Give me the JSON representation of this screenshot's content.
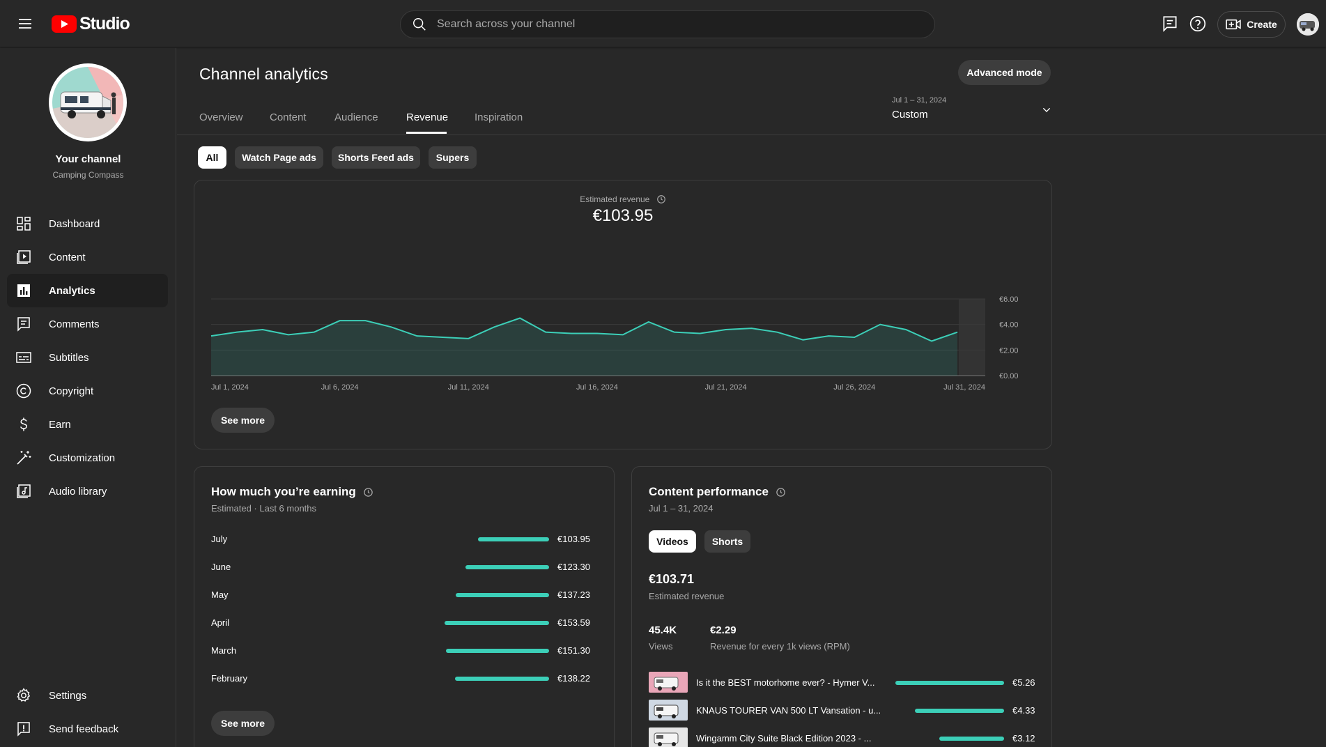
{
  "topbar": {
    "logo_text": "Studio",
    "search_placeholder": "Search across your channel",
    "create_label": "Create"
  },
  "sidebar": {
    "channel_title": "Your channel",
    "channel_name": "Camping Compass",
    "items": [
      {
        "label": "Dashboard",
        "icon": "dashboard-icon"
      },
      {
        "label": "Content",
        "icon": "content-icon"
      },
      {
        "label": "Analytics",
        "icon": "analytics-icon",
        "active": true
      },
      {
        "label": "Comments",
        "icon": "comments-icon"
      },
      {
        "label": "Subtitles",
        "icon": "subtitles-icon"
      },
      {
        "label": "Copyright",
        "icon": "copyright-icon"
      },
      {
        "label": "Earn",
        "icon": "earn-icon"
      },
      {
        "label": "Customization",
        "icon": "customization-icon"
      },
      {
        "label": "Audio library",
        "icon": "audio-library-icon"
      }
    ],
    "bottom_items": [
      {
        "label": "Settings",
        "icon": "settings-icon"
      },
      {
        "label": "Send feedback",
        "icon": "feedback-icon"
      }
    ]
  },
  "header": {
    "title": "Channel analytics",
    "advanced_mode_label": "Advanced mode",
    "tabs": [
      "Overview",
      "Content",
      "Audience",
      "Revenue",
      "Inspiration"
    ],
    "active_tab": "Revenue",
    "date_range": "Jul 1 – 31, 2024",
    "date_label": "Custom"
  },
  "filter_chips": [
    {
      "label": "All",
      "active": true
    },
    {
      "label": "Watch Page ads"
    },
    {
      "label": "Shorts Feed ads"
    },
    {
      "label": "Supers"
    }
  ],
  "revenue_card": {
    "label": "Estimated revenue",
    "value": "€103.95",
    "see_more": "See more"
  },
  "chart_data": {
    "type": "area",
    "x": [
      "Jul 1",
      "Jul 2",
      "Jul 3",
      "Jul 4",
      "Jul 5",
      "Jul 6",
      "Jul 7",
      "Jul 8",
      "Jul 9",
      "Jul 10",
      "Jul 11",
      "Jul 12",
      "Jul 13",
      "Jul 14",
      "Jul 15",
      "Jul 16",
      "Jul 17",
      "Jul 18",
      "Jul 19",
      "Jul 20",
      "Jul 21",
      "Jul 22",
      "Jul 23",
      "Jul 24",
      "Jul 25",
      "Jul 26",
      "Jul 27",
      "Jul 28",
      "Jul 29",
      "Jul 30"
    ],
    "series": [
      {
        "values": [
          3.1,
          3.4,
          3.6,
          3.2,
          3.4,
          4.3,
          4.3,
          3.8,
          3.1,
          3.0,
          2.9,
          3.8,
          4.5,
          3.4,
          3.3,
          3.3,
          3.2,
          4.2,
          3.4,
          3.3,
          3.6,
          3.7,
          3.4,
          2.8,
          3.1,
          3.0,
          4.0,
          3.6,
          2.7,
          3.4
        ]
      }
    ],
    "x_tick_labels": [
      "Jul 1, 2024",
      "Jul 6, 2024",
      "Jul 11, 2024",
      "Jul 16, 2024",
      "Jul 21, 2024",
      "Jul 26, 2024",
      "Jul 31, 2024"
    ],
    "y_tick_labels": [
      "€6.00",
      "€4.00",
      "€2.00",
      "€0.00"
    ],
    "ylim": [
      0,
      6
    ],
    "grid": true,
    "line_color": "#3ccfb8"
  },
  "earning_card": {
    "title": "How much you’re earning",
    "subtitle": "Estimated · Last 6 months",
    "rows": [
      {
        "month": "July",
        "value": 103.95,
        "label": "€103.95"
      },
      {
        "month": "June",
        "value": 123.3,
        "label": "€123.30"
      },
      {
        "month": "May",
        "value": 137.23,
        "label": "€137.23"
      },
      {
        "month": "April",
        "value": 153.59,
        "label": "€153.59"
      },
      {
        "month": "March",
        "value": 151.3,
        "label": "€151.30"
      },
      {
        "month": "February",
        "value": 138.22,
        "label": "€138.22"
      }
    ],
    "see_more": "See more"
  },
  "content_card": {
    "title": "Content performance",
    "subtitle": "Jul 1 – 31, 2024",
    "chips": [
      "Videos",
      "Shorts"
    ],
    "total_value": "€103.71",
    "total_label": "Estimated revenue",
    "views_value": "45.4K",
    "views_label": "Views",
    "rpm_value": "€2.29",
    "rpm_label": "Revenue for every 1k views (RPM)",
    "videos": [
      {
        "title": "Is it the BEST motorhome ever? - Hymer V...",
        "value": 5.26,
        "label": "€5.26"
      },
      {
        "title": "KNAUS TOURER VAN 500 LT Vansation - u...",
        "value": 4.33,
        "label": "€4.33"
      },
      {
        "title": "Wingamm City Suite Black Edition 2023 - ...",
        "value": 3.12,
        "label": "€3.12"
      }
    ]
  },
  "colors": {
    "accent": "#3ccfb8",
    "youtube_red": "#ff0000",
    "background": "#282828"
  }
}
